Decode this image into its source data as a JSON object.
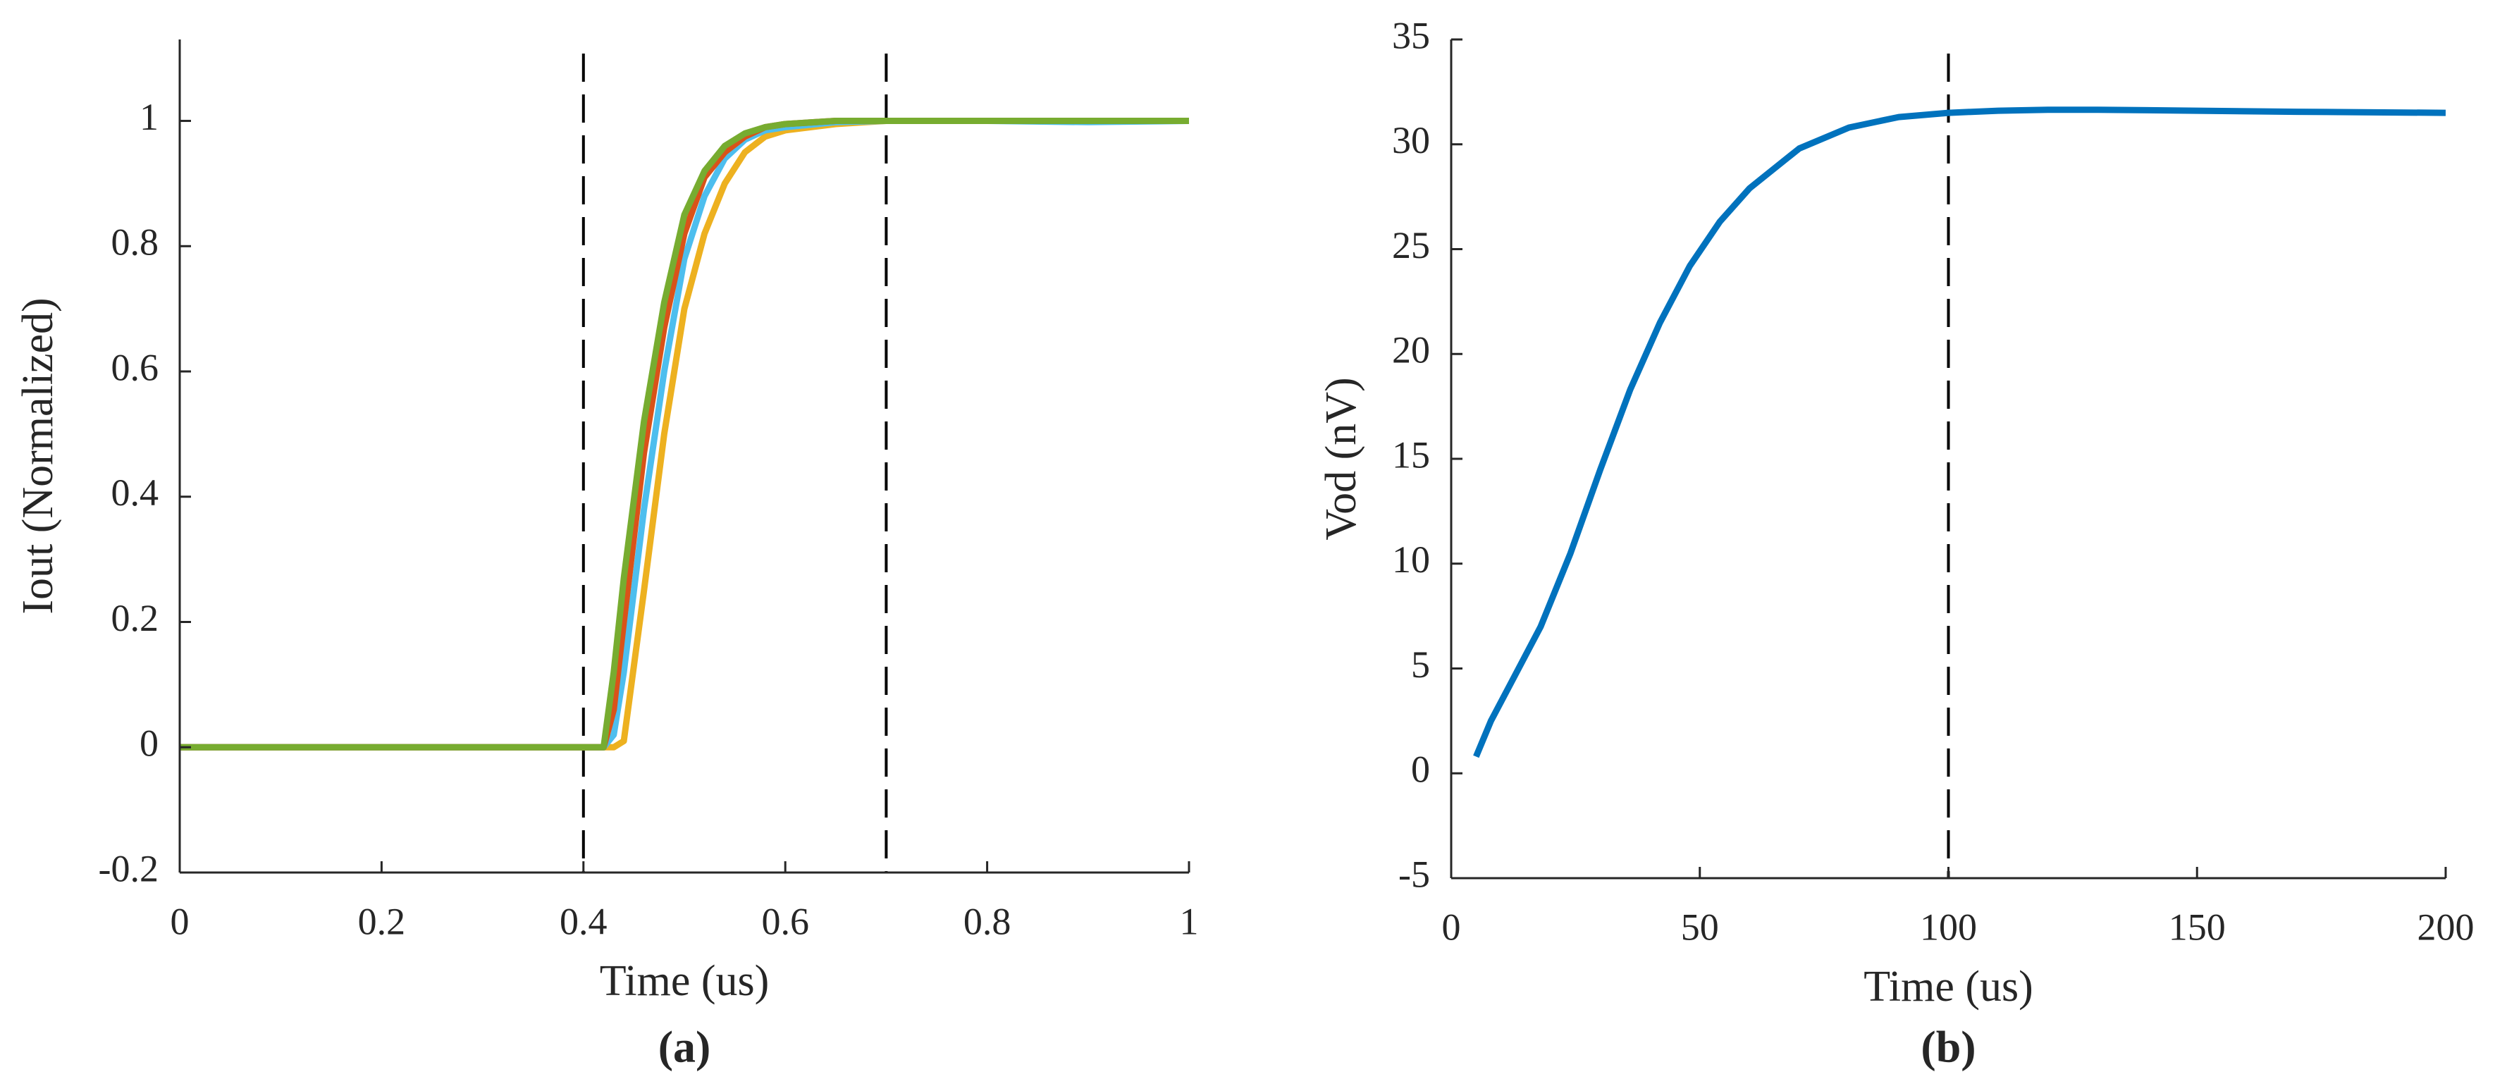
{
  "chart_data": [
    {
      "type": "line",
      "panel_label": "(a)",
      "x_label": "Time (us)",
      "y_label": "Iout (Normalized)",
      "xlim": [
        0,
        1
      ],
      "ylim": [
        -0.2,
        1.13
      ],
      "xticks": [
        0,
        0.2,
        0.4,
        0.6,
        0.8,
        1
      ],
      "yticks": [
        -0.2,
        0,
        0.2,
        0.4,
        0.6,
        0.8,
        1
      ],
      "vlines": [
        0.4,
        0.7
      ],
      "x": [
        0,
        0.4,
        0.42,
        0.43,
        0.44,
        0.46,
        0.48,
        0.5,
        0.52,
        0.54,
        0.56,
        0.58,
        0.6,
        0.65,
        0.7,
        0.8,
        0.9,
        1
      ],
      "series": [
        {
          "color": "#EDB120",
          "values": [
            0,
            0,
            0,
            0,
            0.01,
            0.25,
            0.5,
            0.7,
            0.82,
            0.9,
            0.95,
            0.975,
            0.985,
            0.995,
            1,
            1,
            1,
            1
          ]
        },
        {
          "color": "#4DBEEE",
          "values": [
            0,
            0,
            0,
            0.02,
            0.12,
            0.38,
            0.6,
            0.78,
            0.88,
            0.94,
            0.97,
            0.985,
            0.99,
            0.998,
            1,
            1,
            0.998,
            1
          ]
        },
        {
          "color": "#D95319",
          "values": [
            0,
            0,
            0,
            0.06,
            0.2,
            0.47,
            0.67,
            0.82,
            0.91,
            0.95,
            0.975,
            0.99,
            0.995,
            1,
            1,
            1,
            1,
            1
          ]
        },
        {
          "color": "#77AC30",
          "values": [
            0,
            0,
            0,
            0.12,
            0.27,
            0.52,
            0.71,
            0.85,
            0.92,
            0.96,
            0.98,
            0.99,
            0.995,
            1,
            1,
            1,
            1,
            1
          ]
        }
      ]
    },
    {
      "type": "line",
      "panel_label": "(b)",
      "x_label": "Time (us)",
      "y_label": "Vod (nV)",
      "xlim": [
        0,
        200
      ],
      "ylim": [
        -5,
        35
      ],
      "xticks": [
        0,
        50,
        100,
        150,
        200
      ],
      "yticks": [
        -5,
        0,
        5,
        10,
        15,
        20,
        25,
        30,
        35
      ],
      "vlines": [
        100
      ],
      "x": [
        5,
        8,
        12,
        18,
        24,
        30,
        36,
        42,
        48,
        54,
        60,
        70,
        80,
        90,
        100,
        110,
        120,
        130,
        150,
        170,
        200
      ],
      "series": [
        {
          "color": "#0072BD",
          "values": [
            0.8,
            2.5,
            4.3,
            7,
            10.5,
            14.5,
            18.3,
            21.5,
            24.2,
            26.3,
            27.9,
            29.8,
            30.8,
            31.3,
            31.5,
            31.6,
            31.65,
            31.65,
            31.6,
            31.55,
            31.5
          ]
        }
      ]
    }
  ]
}
